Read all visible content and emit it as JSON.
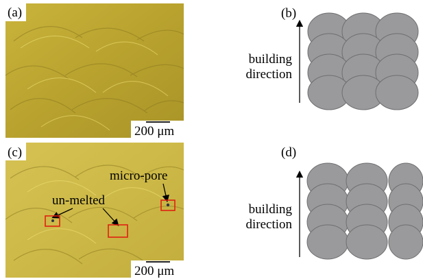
{
  "panels": [
    {
      "label": "(a)",
      "scale_bar": "200 μm"
    },
    {
      "label": "(b)",
      "axis_label": [
        "building",
        "direction"
      ]
    },
    {
      "label": "(c)",
      "scale_bar": "200 μm",
      "annotations": [
        "micro-pore",
        "un-melted"
      ]
    },
    {
      "label": "(d)",
      "axis_label": [
        "building",
        "direction"
      ]
    }
  ]
}
